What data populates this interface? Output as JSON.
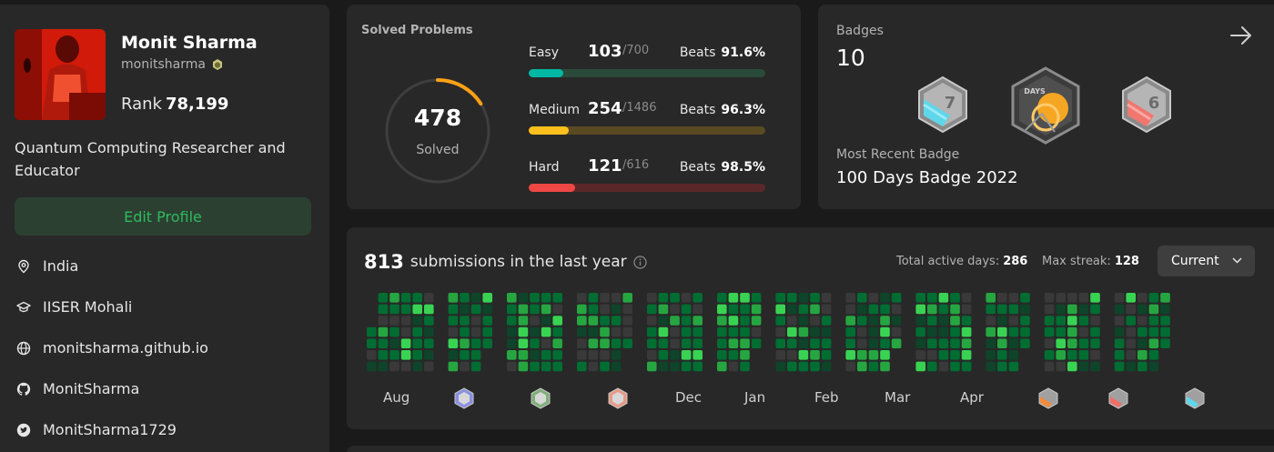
{
  "profile": {
    "name": "Monit Sharma",
    "handle": "monitsharma",
    "rank_label": "Rank",
    "rank_value": "78,199",
    "bio": "Quantum Computing Researcher and Educator",
    "edit_button": "Edit Profile",
    "location": "India",
    "institution": "IISER Mohali",
    "website": "monitsharma.github.io",
    "github": "MonitSharma",
    "twitter": "MonitSharma1729"
  },
  "solved": {
    "title": "Solved Problems",
    "total": "478",
    "total_label": "Solved",
    "total_fraction": 0.16,
    "difficulties": [
      {
        "name": "Easy",
        "count": "103",
        "total": "/700",
        "beats_label": "Beats",
        "beats": "91.6%",
        "fraction": 0.147,
        "color": "#00b8a3",
        "track": "#2a4a3a"
      },
      {
        "name": "Medium",
        "count": "254",
        "total": "/1486",
        "beats_label": "Beats",
        "beats": "96.3%",
        "fraction": 0.171,
        "color": "#ffc01e",
        "track": "#5a4a22"
      },
      {
        "name": "Hard",
        "count": "121",
        "total": "/616",
        "beats_label": "Beats",
        "beats": "98.5%",
        "fraction": 0.196,
        "color": "#ef4743",
        "track": "#5a2828"
      }
    ]
  },
  "badges": {
    "title": "Badges",
    "count": "10",
    "recent_label": "Most Recent Badge",
    "recent_name": "100 Days Badge 2022",
    "items": [
      {
        "icon": "jul-7-badge-icon",
        "text": "7"
      },
      {
        "icon": "100-days-badge-icon",
        "text": "DAYS"
      },
      {
        "icon": "jun-6-badge-icon",
        "text": "6"
      }
    ]
  },
  "submissions": {
    "count": "813",
    "label": "submissions in the last year",
    "active_days_label": "Total active days:",
    "active_days": "286",
    "max_streak_label": "Max streak:",
    "max_streak": "128",
    "period": "Current",
    "months": [
      "Aug",
      "",
      "",
      "",
      "Dec",
      "Jan",
      "Feb",
      "Mar",
      "Apr",
      "",
      "",
      ""
    ]
  },
  "colors": {
    "accent_green": "#2cbb5d",
    "card_bg": "#282828",
    "page_bg": "#1a1a1a"
  }
}
